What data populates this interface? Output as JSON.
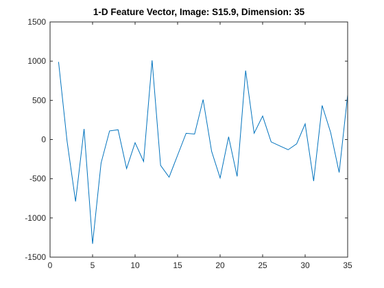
{
  "title": "1-D Feature Vector, Image: S15.9, Dimension: 35",
  "colors": {
    "line": "#0072bd",
    "axes": "#262626",
    "background": "#ffffff"
  },
  "chart_data": {
    "type": "line",
    "title": "1-D Feature Vector, Image: S15.9, Dimension: 35",
    "xlabel": "",
    "ylabel": "",
    "xlim": [
      0,
      35
    ],
    "ylim": [
      -1500,
      1500
    ],
    "x_ticks": [
      0,
      5,
      10,
      15,
      20,
      25,
      30,
      35
    ],
    "y_ticks": [
      -1500,
      -1000,
      -500,
      0,
      500,
      1000,
      1500
    ],
    "grid": false,
    "legend": "none",
    "series": [
      {
        "x": [
          1,
          2,
          3,
          4,
          5,
          6,
          7,
          8,
          9,
          10,
          11,
          12,
          13,
          14,
          15,
          16,
          17,
          18,
          19,
          20,
          21,
          22,
          23,
          24,
          25,
          26,
          27,
          28,
          29,
          30,
          31,
          32,
          33,
          34,
          35
        ],
        "values": [
          990,
          -20,
          -790,
          135,
          -1330,
          -300,
          110,
          125,
          -370,
          -40,
          -280,
          1010,
          -330,
          -480,
          -200,
          80,
          70,
          510,
          -150,
          -490,
          35,
          -470,
          880,
          80,
          300,
          -30,
          -80,
          -130,
          -55,
          200,
          -530,
          435,
          90,
          -420,
          570
        ]
      }
    ]
  }
}
